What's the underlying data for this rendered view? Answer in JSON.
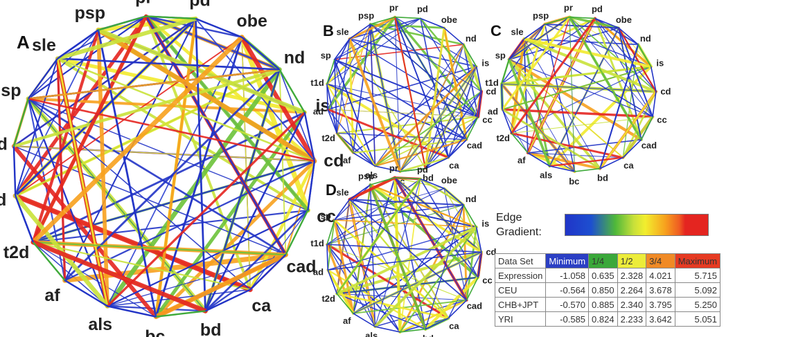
{
  "nodes": [
    "pr",
    "pd",
    "obe",
    "nd",
    "is",
    "cd",
    "cc",
    "cad",
    "ca",
    "bd",
    "bc",
    "als",
    "af",
    "t2d",
    "ad",
    "t1d",
    "sp",
    "sle",
    "psp"
  ],
  "panels": [
    {
      "letter": "A"
    },
    {
      "letter": "B"
    },
    {
      "letter": "C"
    },
    {
      "letter": "D"
    }
  ],
  "legend": {
    "title_line1": "Edge",
    "title_line2": "Gradient:",
    "gradient_colors": [
      "#2035c8",
      "#1d4fd0",
      "#4fb83a",
      "#c8e03a",
      "#f2ee2e",
      "#f7a11e",
      "#ef5b22",
      "#e42520"
    ]
  },
  "table": {
    "headers": [
      "Data Set",
      "Minimum",
      "1/4",
      "1/2",
      "3/4",
      "Maximum"
    ],
    "header_colors": [
      "#ffffff",
      "#2b3fc4",
      "#3aa83a",
      "#ecec3a",
      "#f08a26",
      "#e63a22"
    ],
    "rows": [
      {
        "name": "Expression",
        "values": [
          "-1.058",
          "0.635",
          "2.328",
          "4.021",
          "5.715"
        ]
      },
      {
        "name": "CEU",
        "values": [
          "-0.564",
          "0.850",
          "2.264",
          "3.678",
          "5.092"
        ]
      },
      {
        "name": "CHB+JPT",
        "values": [
          "-0.570",
          "0.885",
          "2.340",
          "3.795",
          "5.250"
        ]
      },
      {
        "name": "YRI",
        "values": [
          "-0.585",
          "0.824",
          "2.233",
          "3.642",
          "5.051"
        ]
      }
    ]
  }
}
